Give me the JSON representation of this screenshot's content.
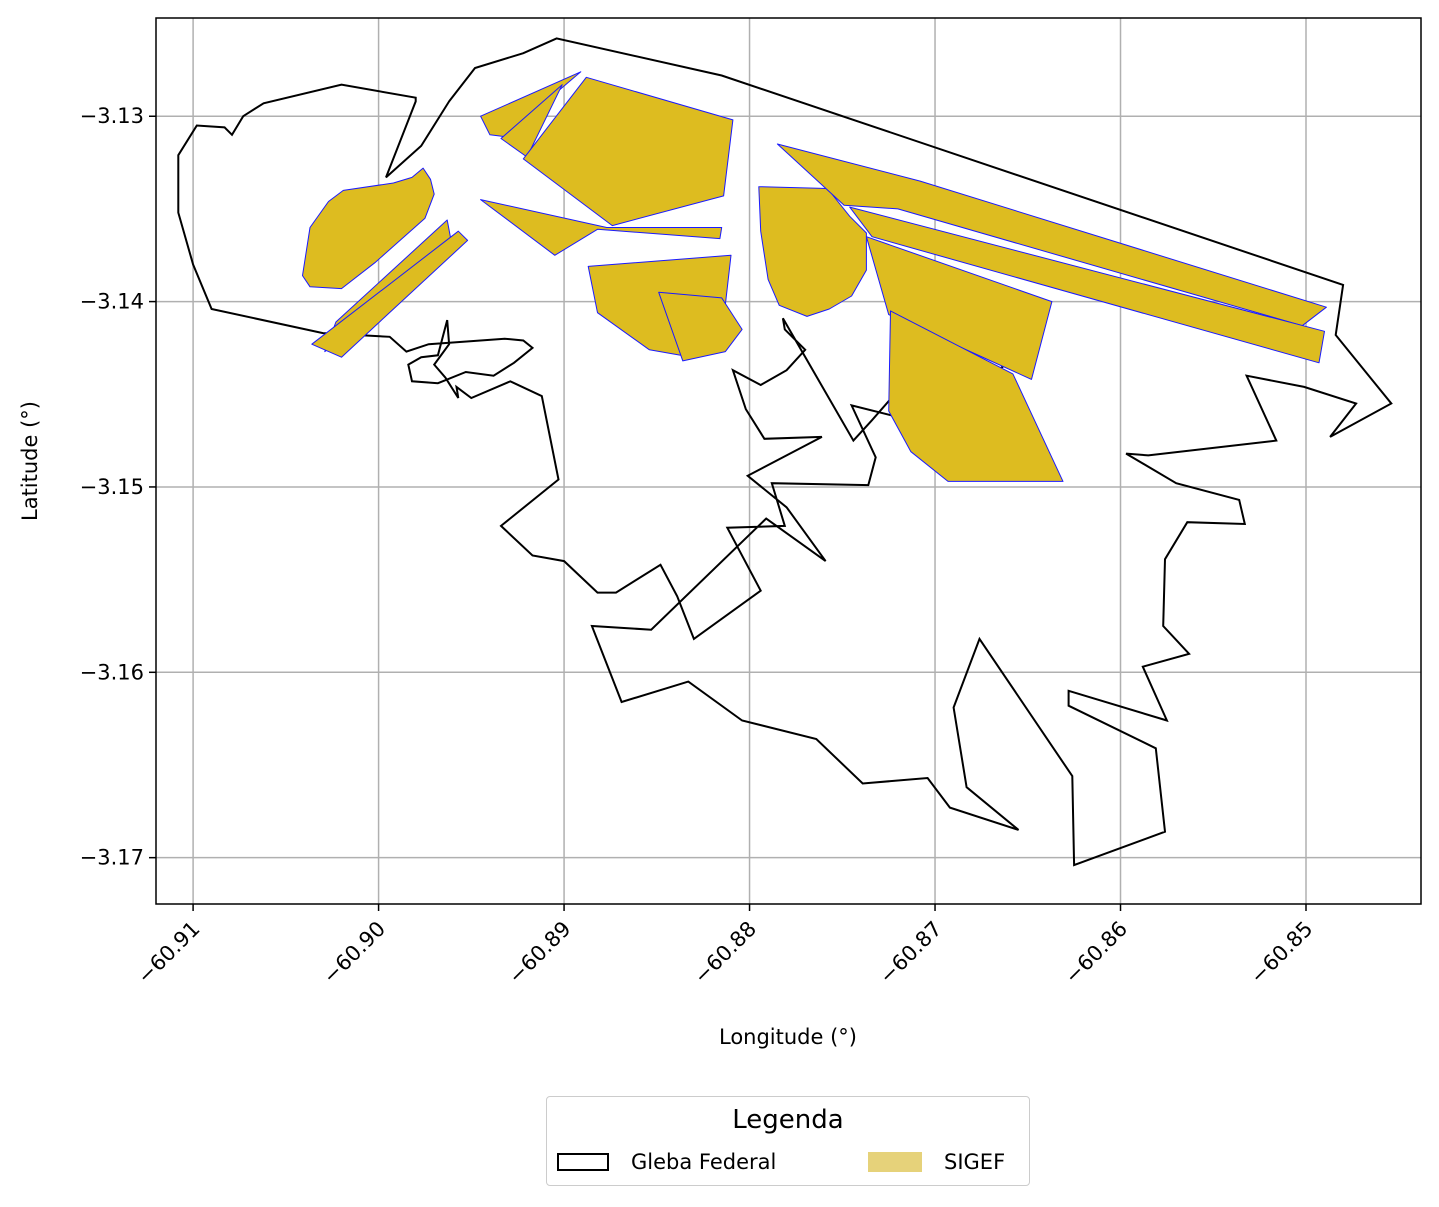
{
  "chart_data": {
    "type": "map",
    "xlabel": "Longitude (°)",
    "ylabel": "Latitude (°)",
    "xlim": [
      -60.912,
      -60.8438
    ],
    "ylim": [
      -3.1725,
      -3.1247
    ],
    "x_ticks": [
      -60.91,
      -60.9,
      -60.89,
      -60.88,
      -60.87,
      -60.86,
      -60.85
    ],
    "x_tick_labels": [
      "−60.91",
      "−60.90",
      "−60.89",
      "−60.88",
      "−60.87",
      "−60.86",
      "−60.85"
    ],
    "y_ticks": [
      -3.13,
      -3.14,
      -3.15,
      -3.16,
      -3.17
    ],
    "y_tick_labels": [
      "−3.13",
      "−3.14",
      "−3.15",
      "−3.16",
      "−3.17"
    ],
    "grid": true,
    "legend": {
      "title": "Legenda",
      "placement": "bottom-center",
      "entries": [
        "Gleba Federal",
        "SIGEF"
      ]
    },
    "colors": {
      "gleba_edge": "#000000",
      "sigef_fill": "#ddbc20",
      "sigef_edge": "#1a1aff",
      "legend_sigef_fill": "#e6d27a",
      "grid": "#b0b0b0"
    },
    "layers": [
      {
        "name": "Gleba Federal",
        "style": "outline",
        "polygons": [
          [
            [
              -60.8962,
              -3.1292
            ],
            [
              -60.8948,
              -3.1274
            ],
            [
              -60.8922,
              -3.1266
            ],
            [
              -60.8904,
              -3.1258
            ],
            [
              -60.8815,
              -3.1278
            ],
            [
              -60.848,
              -3.1391
            ],
            [
              -60.8484,
              -3.1418
            ],
            [
              -60.8454,
              -3.1455
            ],
            [
              -60.8487,
              -3.1473
            ],
            [
              -60.8473,
              -3.1455
            ],
            [
              -60.8501,
              -3.1446
            ],
            [
              -60.8532,
              -3.144
            ],
            [
              -60.8516,
              -3.1475
            ],
            [
              -60.8585,
              -3.1483
            ],
            [
              -60.8597,
              -3.1482
            ],
            [
              -60.857,
              -3.1498
            ],
            [
              -60.8536,
              -3.1507
            ],
            [
              -60.8533,
              -3.152
            ],
            [
              -60.8564,
              -3.1519
            ],
            [
              -60.8576,
              -3.1539
            ],
            [
              -60.8577,
              -3.1575
            ],
            [
              -60.8563,
              -3.159
            ],
            [
              -60.8588,
              -3.1597
            ],
            [
              -60.8575,
              -3.1626
            ],
            [
              -60.8628,
              -3.161
            ],
            [
              -60.8628,
              -3.1618
            ],
            [
              -60.8581,
              -3.1641
            ],
            [
              -60.8576,
              -3.1686
            ],
            [
              -60.8625,
              -3.1704
            ],
            [
              -60.8626,
              -3.1656
            ],
            [
              -60.8676,
              -3.1582
            ],
            [
              -60.869,
              -3.1619
            ],
            [
              -60.8683,
              -3.1662
            ],
            [
              -60.8655,
              -3.1685
            ],
            [
              -60.8692,
              -3.1673
            ],
            [
              -60.8704,
              -3.1657
            ],
            [
              -60.8739,
              -3.166
            ],
            [
              -60.8764,
              -3.1636
            ],
            [
              -60.8804,
              -3.1626
            ],
            [
              -60.8833,
              -3.1605
            ],
            [
              -60.8869,
              -3.1616
            ],
            [
              -60.8885,
              -3.1575
            ],
            [
              -60.8853,
              -3.1577
            ],
            [
              -60.8791,
              -3.1517
            ],
            [
              -60.8759,
              -3.154
            ],
            [
              -60.878,
              -3.1511
            ],
            [
              -60.8801,
              -3.1494
            ],
            [
              -60.8761,
              -3.1473
            ],
            [
              -60.8792,
              -3.1474
            ],
            [
              -60.8802,
              -3.1458
            ],
            [
              -60.8809,
              -3.1437
            ],
            [
              -60.8794,
              -3.1445
            ],
            [
              -60.878,
              -3.1437
            ],
            [
              -60.877,
              -3.1426
            ],
            [
              -60.8781,
              -3.1415
            ],
            [
              -60.8782,
              -3.1409
            ],
            [
              -60.8744,
              -3.1475
            ],
            [
              -60.8734,
              -3.1464
            ],
            [
              -60.8713,
              -3.144
            ],
            [
              -60.8698,
              -3.1428
            ],
            [
              -60.8696,
              -3.1421
            ],
            [
              -60.8662,
              -3.1434
            ],
            [
              -60.8705,
              -3.1466
            ],
            [
              -60.8745,
              -3.1456
            ],
            [
              -60.8732,
              -3.1484
            ],
            [
              -60.8736,
              -3.1499
            ],
            [
              -60.8788,
              -3.1498
            ],
            [
              -60.8781,
              -3.1521
            ],
            [
              -60.8812,
              -3.1522
            ],
            [
              -60.8794,
              -3.1556
            ],
            [
              -60.883,
              -3.1582
            ],
            [
              -60.8839,
              -3.1559
            ],
            [
              -60.8848,
              -3.1542
            ],
            [
              -60.8872,
              -3.1557
            ],
            [
              -60.8882,
              -3.1557
            ],
            [
              -60.89,
              -3.154
            ],
            [
              -60.8917,
              -3.1537
            ],
            [
              -60.8934,
              -3.1521
            ],
            [
              -60.8903,
              -3.1496
            ],
            [
              -60.8912,
              -3.1451
            ],
            [
              -60.8929,
              -3.1443
            ],
            [
              -60.895,
              -3.1452
            ],
            [
              -60.8958,
              -3.1446
            ],
            [
              -60.8957,
              -3.1452
            ],
            [
              -60.8964,
              -3.1441
            ],
            [
              -60.897,
              -3.1434
            ],
            [
              -60.8962,
              -3.1423
            ],
            [
              -60.8963,
              -3.141
            ],
            [
              -60.8968,
              -3.1429
            ],
            [
              -60.8977,
              -3.143
            ],
            [
              -60.8984,
              -3.1434
            ],
            [
              -60.8982,
              -3.1443
            ],
            [
              -60.8968,
              -3.1444
            ],
            [
              -60.8953,
              -3.1438
            ],
            [
              -60.8938,
              -3.144
            ],
            [
              -60.8927,
              -3.1433
            ],
            [
              -60.8917,
              -3.1425
            ],
            [
              -60.8922,
              -3.1421
            ],
            [
              -60.8932,
              -3.142
            ],
            [
              -60.8973,
              -3.1423
            ],
            [
              -60.8985,
              -3.1427
            ],
            [
              -60.8994,
              -3.1419
            ],
            [
              -60.903,
              -3.1417
            ],
            [
              -60.909,
              -3.1404
            ],
            [
              -60.91,
              -3.138
            ],
            [
              -60.9108,
              -3.1352
            ],
            [
              -60.9108,
              -3.1321
            ],
            [
              -60.9098,
              -3.1305
            ],
            [
              -60.9083,
              -3.1306
            ],
            [
              -60.9079,
              -3.131
            ],
            [
              -60.9073,
              -3.13
            ],
            [
              -60.9062,
              -3.1293
            ],
            [
              -60.902,
              -3.1283
            ],
            [
              -60.898,
              -3.129
            ],
            [
              -60.898,
              -3.1292
            ],
            [
              -60.8996,
              -3.1333
            ],
            [
              -60.8977,
              -3.1316
            ],
            [
              -60.8962,
              -3.1292
            ]
          ]
        ]
      },
      {
        "name": "SIGEF",
        "style": "filled",
        "polygons": [
          [
            [
              -60.9037,
              -3.136
            ],
            [
              -60.9027,
              -3.1346
            ],
            [
              -60.9019,
              -3.134
            ],
            [
              -60.8992,
              -3.1336
            ],
            [
              -60.8982,
              -3.1333
            ],
            [
              -60.8976,
              -3.1328
            ],
            [
              -60.8972,
              -3.1334
            ],
            [
              -60.897,
              -3.1342
            ],
            [
              -60.8975,
              -3.1355
            ],
            [
              -60.9002,
              -3.1379
            ],
            [
              -60.902,
              -3.1393
            ],
            [
              -60.9037,
              -3.1392
            ],
            [
              -60.9041,
              -3.1386
            ],
            [
              -60.9037,
              -3.136
            ]
          ],
          [
            [
              -60.8932,
              -3.1311
            ],
            [
              -60.8891,
              -3.1276
            ],
            [
              -60.8945,
              -3.13
            ],
            [
              -60.894,
              -3.131
            ],
            [
              -60.8932,
              -3.1311
            ]
          ],
          [
            [
              -60.8934,
              -3.1312
            ],
            [
              -60.8901,
              -3.1283
            ],
            [
              -60.892,
              -3.1322
            ],
            [
              -60.8934,
              -3.1312
            ]
          ],
          [
            [
              -60.8922,
              -3.1323
            ],
            [
              -60.8888,
              -3.1279
            ],
            [
              -60.8809,
              -3.1302
            ],
            [
              -60.8814,
              -3.1343
            ],
            [
              -60.8874,
              -3.1359
            ],
            [
              -60.8922,
              -3.1323
            ]
          ],
          [
            [
              -60.8945,
              -3.1345
            ],
            [
              -60.8877,
              -3.136
            ],
            [
              -60.8815,
              -3.136
            ],
            [
              -60.8816,
              -3.1366
            ],
            [
              -60.8882,
              -3.1361
            ],
            [
              -60.8905,
              -3.1375
            ],
            [
              -60.8945,
              -3.1345
            ]
          ],
          [
            [
              -60.9029,
              -3.1427
            ],
            [
              -60.896,
              -3.1372
            ],
            [
              -60.8963,
              -3.1356
            ],
            [
              -60.9023,
              -3.1411
            ],
            [
              -60.9029,
              -3.1427
            ]
          ],
          [
            [
              -60.8957,
              -3.1362
            ],
            [
              -60.8952,
              -3.1367
            ],
            [
              -60.902,
              -3.143
            ],
            [
              -60.9036,
              -3.1423
            ],
            [
              -60.8957,
              -3.1362
            ]
          ],
          [
            [
              -60.8887,
              -3.1381
            ],
            [
              -60.8882,
              -3.1406
            ],
            [
              -60.8854,
              -3.1426
            ],
            [
              -60.8831,
              -3.143
            ],
            [
              -60.8814,
              -3.141
            ],
            [
              -60.881,
              -3.1375
            ],
            [
              -60.8887,
              -3.1381
            ]
          ],
          [
            [
              -60.8849,
              -3.1395
            ],
            [
              -60.8815,
              -3.1398
            ],
            [
              -60.8804,
              -3.1415
            ],
            [
              -60.8813,
              -3.1427
            ],
            [
              -60.8836,
              -3.1432
            ],
            [
              -60.8849,
              -3.1395
            ]
          ],
          [
            [
              -60.8795,
              -3.1338
            ],
            [
              -60.8758,
              -3.1339
            ],
            [
              -60.8746,
              -3.1354
            ],
            [
              -60.8737,
              -3.1363
            ],
            [
              -60.8737,
              -3.1383
            ],
            [
              -60.8745,
              -3.1397
            ],
            [
              -60.8757,
              -3.1404
            ],
            [
              -60.8769,
              -3.1408
            ],
            [
              -60.8784,
              -3.1402
            ],
            [
              -60.879,
              -3.1388
            ],
            [
              -60.8794,
              -3.1362
            ],
            [
              -60.8795,
              -3.1338
            ]
          ],
          [
            [
              -60.8785,
              -3.1315
            ],
            [
              -60.8708,
              -3.1335
            ],
            [
              -60.8489,
              -3.1403
            ],
            [
              -60.8502,
              -3.1413
            ],
            [
              -60.872,
              -3.135
            ],
            [
              -60.8749,
              -3.1348
            ],
            [
              -60.8785,
              -3.1315
            ]
          ],
          [
            [
              -60.8746,
              -3.1349
            ],
            [
              -60.849,
              -3.1416
            ],
            [
              -60.8493,
              -3.1433
            ],
            [
              -60.8734,
              -3.1365
            ],
            [
              -60.8746,
              -3.1349
            ]
          ],
          [
            [
              -60.8737,
              -3.1365
            ],
            [
              -60.8637,
              -3.14
            ],
            [
              -60.8648,
              -3.1442
            ],
            [
              -60.8725,
              -3.1407
            ],
            [
              -60.8737,
              -3.1365
            ]
          ],
          [
            [
              -60.8724,
              -3.1405
            ],
            [
              -60.8658,
              -3.1439
            ],
            [
              -60.8631,
              -3.1497
            ],
            [
              -60.8693,
              -3.1497
            ],
            [
              -60.8713,
              -3.1481
            ],
            [
              -60.8725,
              -3.1459
            ],
            [
              -60.8724,
              -3.1405
            ]
          ]
        ]
      }
    ]
  }
}
